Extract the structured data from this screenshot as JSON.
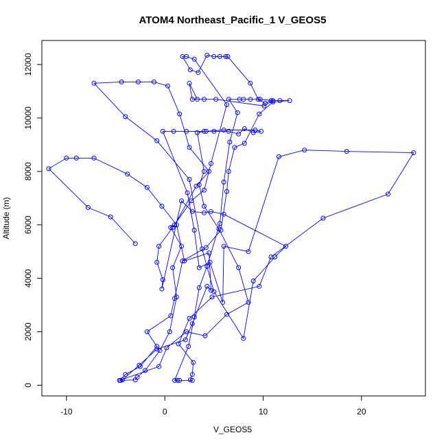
{
  "chart_data": {
    "type": "line",
    "title": "ATOM4 Northeast_Pacific_1 V_GEOS5",
    "xlabel": "V_GEOS5",
    "ylabel": "Altitude (m)",
    "xlim": [
      -12.5,
      26.5
    ],
    "ylim": [
      -400,
      12900
    ],
    "x_ticks": [
      -10,
      0,
      10,
      20
    ],
    "y_ticks": [
      0,
      2000,
      4000,
      6000,
      8000,
      10000,
      12000
    ],
    "grid": false,
    "legend": "none",
    "series_color": "#0000ff",
    "markers": "open-circle",
    "points": [
      [
        -3.0,
        5300
      ],
      [
        -5.5,
        6300
      ],
      [
        -7.8,
        6650
      ],
      [
        -11.8,
        8100
      ],
      [
        -10.0,
        8500
      ],
      [
        -9.0,
        8500
      ],
      [
        -7.2,
        8500
      ],
      [
        -3.8,
        7900
      ],
      [
        -1.8,
        7400
      ],
      [
        -0.3,
        6700
      ],
      [
        1.2,
        6000
      ],
      [
        2.0,
        4650
      ],
      [
        4.5,
        4950
      ],
      [
        4.7,
        3550
      ],
      [
        4.3,
        3700
      ],
      [
        2.8,
        2300
      ],
      [
        2.1,
        1700
      ],
      [
        -0.8,
        1350
      ],
      [
        -2.6,
        750
      ],
      [
        -4.3,
        200
      ],
      [
        -4.5,
        180
      ],
      [
        -3.0,
        200
      ],
      [
        -2.8,
        300
      ],
      [
        -2.0,
        550
      ],
      [
        -0.5,
        1300
      ],
      [
        0.5,
        2000
      ],
      [
        1.2,
        3300
      ],
      [
        0.8,
        4400
      ],
      [
        1.7,
        5200
      ],
      [
        0.6,
        5900
      ],
      [
        1.0,
        6000
      ],
      [
        3.2,
        7450
      ],
      [
        4.5,
        8000
      ],
      [
        2.5,
        8900
      ],
      [
        1.5,
        10150
      ],
      [
        0.3,
        11200
      ],
      [
        -1.1,
        11350
      ],
      [
        -2.7,
        11350
      ],
      [
        -4.4,
        11350
      ],
      [
        -7.2,
        11300
      ],
      [
        -4.0,
        10050
      ],
      [
        -0.8,
        9150
      ],
      [
        2.5,
        7700
      ],
      [
        3.8,
        5100
      ],
      [
        5.0,
        3500
      ],
      [
        8.0,
        1750
      ],
      [
        9.0,
        3900
      ],
      [
        11.2,
        4800
      ],
      [
        12.3,
        5200
      ],
      [
        6.0,
        6400
      ],
      [
        4.7,
        6500
      ],
      [
        4.0,
        6450
      ],
      [
        2.8,
        6500
      ],
      [
        1.7,
        6900
      ],
      [
        -0.3,
        3600
      ],
      [
        -0.2,
        3950
      ],
      [
        -0.8,
        4600
      ],
      [
        -0.6,
        5200
      ],
      [
        0.8,
        5900
      ],
      [
        2.7,
        6900
      ],
      [
        4.0,
        7300
      ],
      [
        4.7,
        8300
      ],
      [
        6.3,
        10500
      ],
      [
        3.0,
        12200
      ],
      [
        2.2,
        12300
      ],
      [
        1.8,
        12300
      ],
      [
        2.6,
        11800
      ],
      [
        3.4,
        11700
      ],
      [
        4.3,
        12350
      ],
      [
        5.0,
        12300
      ],
      [
        5.6,
        12300
      ],
      [
        6.2,
        12300
      ],
      [
        6.4,
        12300
      ],
      [
        8.7,
        11300
      ],
      [
        9.5,
        10700
      ],
      [
        10.2,
        10550
      ],
      [
        10.8,
        10650
      ],
      [
        11.7,
        10650
      ],
      [
        12.7,
        10650
      ],
      [
        11.0,
        10600
      ],
      [
        9.6,
        10150
      ],
      [
        8.1,
        9050
      ],
      [
        7.1,
        8900
      ],
      [
        6.5,
        8000
      ],
      [
        6.3,
        7250
      ],
      [
        5.7,
        5800
      ],
      [
        4.2,
        5150
      ],
      [
        1.8,
        4650
      ],
      [
        1.0,
        3250
      ],
      [
        0.6,
        2600
      ],
      [
        -1.8,
        2000
      ],
      [
        -0.8,
        1450
      ],
      [
        -2.5,
        700
      ],
      [
        -4.0,
        400
      ],
      [
        -4.6,
        180
      ],
      [
        -0.6,
        700
      ],
      [
        0.2,
        1400
      ],
      [
        2.2,
        2000
      ],
      [
        4.1,
        1850
      ],
      [
        6.3,
        2650
      ],
      [
        8.5,
        3100
      ],
      [
        7.5,
        4400
      ],
      [
        5.5,
        5850
      ],
      [
        4.0,
        6700
      ],
      [
        3.5,
        7500
      ],
      [
        4.0,
        8000
      ],
      [
        3.3,
        9450
      ],
      [
        4.0,
        9500
      ],
      [
        5.0,
        9500
      ],
      [
        6.5,
        9500
      ],
      [
        7.5,
        9400
      ],
      [
        8.1,
        9600
      ],
      [
        9.0,
        9450
      ],
      [
        9.8,
        9500
      ],
      [
        9.2,
        9550
      ],
      [
        6.0,
        9550
      ],
      [
        4.2,
        9500
      ],
      [
        2.2,
        9500
      ],
      [
        0.9,
        9500
      ],
      [
        -0.2,
        9500
      ],
      [
        2.3,
        7200
      ],
      [
        3.0,
        5800
      ],
      [
        3.5,
        4400
      ],
      [
        4.6,
        4600
      ],
      [
        5.9,
        3100
      ],
      [
        6.0,
        5200
      ],
      [
        8.5,
        5000
      ],
      [
        11.6,
        8550
      ],
      [
        14.2,
        8800
      ],
      [
        18.5,
        8750
      ],
      [
        25.3,
        8700
      ],
      [
        22.7,
        7150
      ],
      [
        16.1,
        6250
      ],
      [
        10.8,
        4800
      ],
      [
        9.6,
        3700
      ],
      [
        4.8,
        3300
      ],
      [
        2.5,
        2500
      ],
      [
        1.4,
        1550
      ],
      [
        2.9,
        850
      ],
      [
        2.8,
        400
      ],
      [
        2.6,
        200
      ],
      [
        2.8,
        180
      ],
      [
        1.5,
        180
      ],
      [
        1.3,
        180
      ],
      [
        1.0,
        180
      ],
      [
        2.4,
        1450
      ],
      [
        3.0,
        2550
      ],
      [
        3.5,
        3650
      ],
      [
        4.3,
        4450
      ],
      [
        5.6,
        6050
      ],
      [
        6.0,
        7600
      ],
      [
        6.6,
        9100
      ],
      [
        7.4,
        10200
      ],
      [
        6.5,
        10700
      ],
      [
        7.6,
        10700
      ],
      [
        8.0,
        10700
      ],
      [
        8.7,
        10700
      ],
      [
        9.7,
        10700
      ],
      [
        11.0,
        10650
      ],
      [
        10.1,
        10450
      ],
      [
        5.2,
        10700
      ],
      [
        2.8,
        10700
      ],
      [
        2.5,
        11300
      ],
      [
        3.3,
        10700
      ],
      [
        4.0,
        10700
      ]
    ]
  }
}
